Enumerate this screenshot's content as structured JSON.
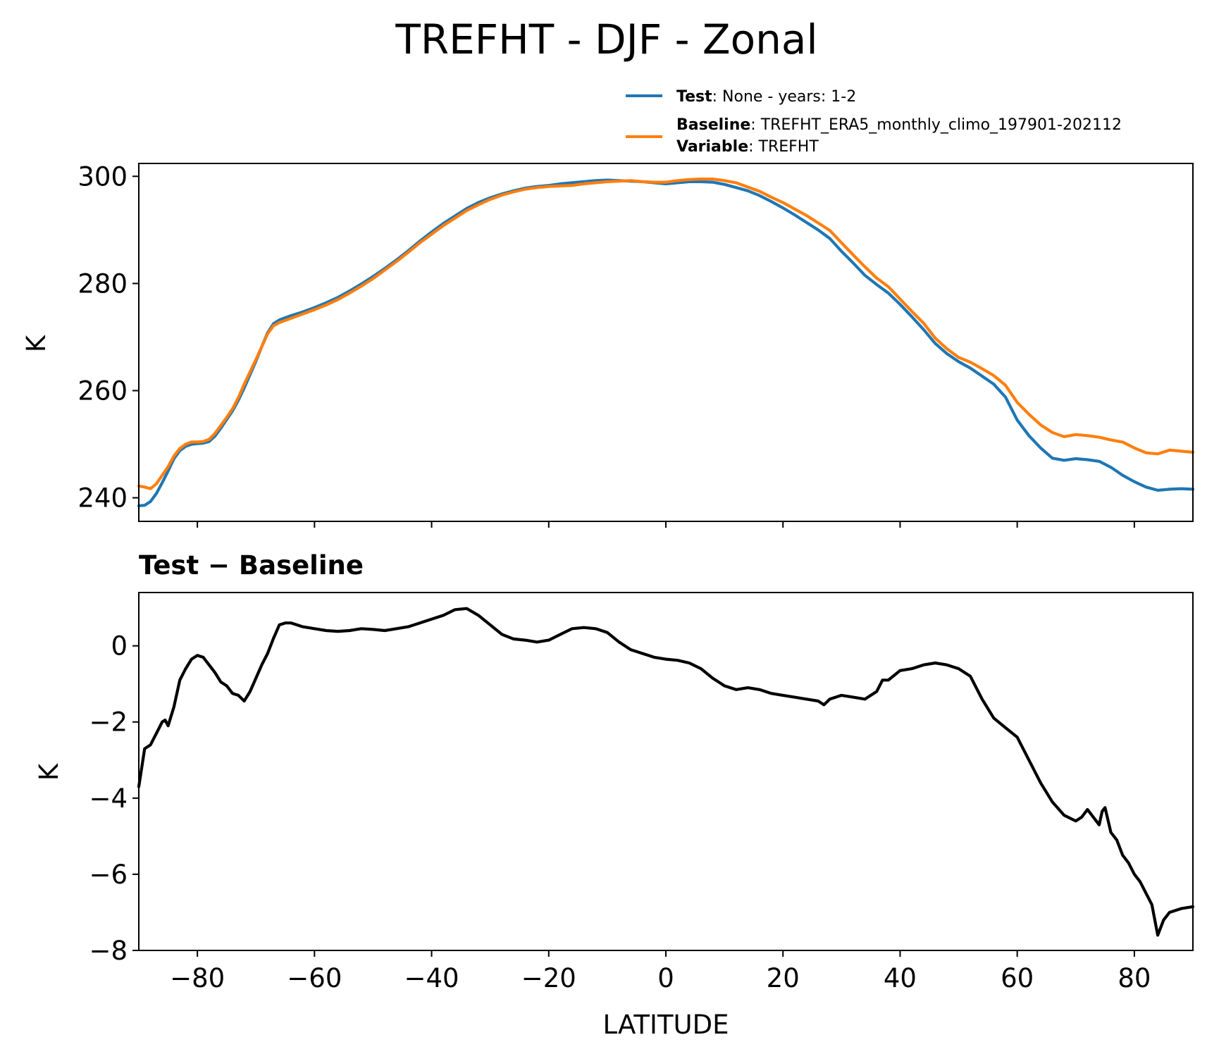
{
  "figure": {
    "title": "TREFHT - DJF - Zonal",
    "bottom_title": "Test − Baseline",
    "xlabel": "LATITUDE",
    "top_ylabel": "K",
    "bottom_ylabel": "K"
  },
  "legend": {
    "test_key": "Test",
    "test_desc": ": None - years: 1-2",
    "baseline_key": "Baseline",
    "baseline_desc": ": TREFHT_ERA5_monthly_climo_197901-202112",
    "variable_key": "Variable",
    "variable_desc": ": TREFHT"
  },
  "colors": {
    "test": "#1f77b4",
    "baseline": "#ff7f0e",
    "diff": "#000000"
  },
  "chart_data": [
    {
      "type": "line",
      "title": "TREFHT - DJF - Zonal",
      "xlabel": "",
      "ylabel": "K",
      "xlim": [
        -90,
        90
      ],
      "ylim": [
        235.6,
        302.4
      ],
      "xticks": [
        -80,
        -60,
        -40,
        -20,
        0,
        20,
        40,
        60,
        80
      ],
      "yticks": [
        240,
        260,
        280,
        300
      ],
      "legend_position": "above-right",
      "grid": false,
      "series": [
        {
          "name": "Test",
          "x": [
            -90,
            -89,
            -88,
            -87,
            -86,
            -85,
            -84,
            -83,
            -82,
            -81,
            -80,
            -79,
            -78,
            -77,
            -76,
            -75,
            -74,
            -73,
            -72,
            -71,
            -70,
            -69,
            -68,
            -67,
            -66,
            -65,
            -64,
            -62,
            -60,
            -58,
            -56,
            -54,
            -52,
            -50,
            -48,
            -46,
            -44,
            -42,
            -40,
            -38,
            -36,
            -34,
            -32,
            -30,
            -28,
            -26,
            -24,
            -22,
            -20,
            -18,
            -16,
            -14,
            -12,
            -10,
            -8,
            -6,
            -4,
            -2,
            0,
            2,
            4,
            6,
            8,
            10,
            12,
            14,
            16,
            18,
            20,
            22,
            24,
            26,
            28,
            30,
            32,
            34,
            36,
            38,
            40,
            42,
            44,
            46,
            48,
            50,
            52,
            54,
            56,
            58,
            60,
            62,
            64,
            66,
            68,
            70,
            72,
            74,
            76,
            78,
            80,
            82,
            84,
            86,
            88,
            90
          ],
          "values": [
            238.5,
            238.6,
            239.3,
            240.8,
            242.8,
            245.0,
            247.3,
            248.8,
            249.6,
            250.0,
            250.1,
            250.2,
            250.5,
            251.5,
            253.0,
            254.6,
            256.2,
            258.2,
            260.5,
            263.0,
            265.5,
            268.2,
            270.8,
            272.5,
            273.2,
            273.6,
            274.0,
            274.7,
            275.5,
            276.4,
            277.4,
            278.6,
            279.9,
            281.3,
            282.8,
            284.4,
            286.1,
            287.9,
            289.6,
            291.2,
            292.6,
            294.0,
            295.1,
            296.0,
            296.7,
            297.3,
            297.8,
            298.1,
            298.3,
            298.6,
            298.8,
            299.0,
            299.2,
            299.3,
            299.2,
            299.1,
            299.0,
            298.8,
            298.6,
            298.8,
            299.0,
            299.0,
            298.9,
            298.5,
            297.9,
            297.3,
            296.4,
            295.3,
            294.1,
            292.8,
            291.4,
            290.0,
            288.4,
            286.0,
            283.8,
            281.5,
            279.8,
            278.2,
            276.1,
            273.8,
            271.4,
            268.8,
            266.9,
            265.4,
            264.2,
            262.7,
            261.2,
            258.8,
            254.5,
            251.6,
            249.3,
            247.4,
            247.0,
            247.3,
            247.1,
            246.8,
            245.7,
            244.2,
            243.0,
            242.0,
            241.4,
            241.6,
            241.7,
            241.6
          ]
        },
        {
          "name": "Baseline",
          "x": [
            -90,
            -89,
            -88,
            -87,
            -86,
            -85,
            -84,
            -83,
            -82,
            -81,
            -80,
            -79,
            -78,
            -77,
            -76,
            -75,
            -74,
            -73,
            -72,
            -71,
            -70,
            -69,
            -68,
            -67,
            -66,
            -65,
            -64,
            -62,
            -60,
            -58,
            -56,
            -54,
            -52,
            -50,
            -48,
            -46,
            -44,
            -42,
            -40,
            -38,
            -36,
            -34,
            -32,
            -30,
            -28,
            -26,
            -24,
            -22,
            -20,
            -18,
            -16,
            -14,
            -12,
            -10,
            -8,
            -6,
            -4,
            -2,
            0,
            2,
            4,
            6,
            8,
            10,
            12,
            14,
            16,
            18,
            20,
            22,
            24,
            26,
            28,
            30,
            32,
            34,
            36,
            38,
            40,
            42,
            44,
            46,
            48,
            50,
            52,
            54,
            56,
            58,
            60,
            62,
            64,
            66,
            68,
            70,
            72,
            74,
            76,
            78,
            80,
            82,
            84,
            86,
            88,
            90
          ],
          "values": [
            242.2,
            242.0,
            241.7,
            242.6,
            244.2,
            245.8,
            247.8,
            249.2,
            250.0,
            250.4,
            250.4,
            250.5,
            250.9,
            252.0,
            253.5,
            255.0,
            256.6,
            258.7,
            261.2,
            263.5,
            265.8,
            268.2,
            270.6,
            272.1,
            272.7,
            273.1,
            273.5,
            274.3,
            275.1,
            276.0,
            277.0,
            278.2,
            279.5,
            280.9,
            282.5,
            284.1,
            285.8,
            287.6,
            289.2,
            290.8,
            292.2,
            293.6,
            294.7,
            295.7,
            296.5,
            297.1,
            297.6,
            297.9,
            298.1,
            298.2,
            298.3,
            298.6,
            298.8,
            299.0,
            299.1,
            299.2,
            299.0,
            298.9,
            298.9,
            299.2,
            299.4,
            299.5,
            299.5,
            299.2,
            298.8,
            298.0,
            297.2,
            296.1,
            295.1,
            293.9,
            292.7,
            291.3,
            289.9,
            287.6,
            285.3,
            283.1,
            281.0,
            279.4,
            277.1,
            274.8,
            272.6,
            269.8,
            267.8,
            266.2,
            265.3,
            264.1,
            262.8,
            261.0,
            257.8,
            255.6,
            253.6,
            252.2,
            251.4,
            251.8,
            251.6,
            251.3,
            250.8,
            250.4,
            249.3,
            248.4,
            248.2,
            248.9,
            248.7,
            248.5
          ]
        }
      ]
    },
    {
      "type": "line",
      "title": "Test − Baseline",
      "xlabel": "LATITUDE",
      "ylabel": "K",
      "xlim": [
        -90,
        90
      ],
      "ylim": [
        -8.0,
        1.4
      ],
      "xticks": [
        -80,
        -60,
        -40,
        -20,
        0,
        20,
        40,
        60,
        80
      ],
      "yticks": [
        -8,
        -6,
        -4,
        -2,
        0
      ],
      "grid": false,
      "series": [
        {
          "name": "Test − Baseline",
          "x": [
            -90,
            -89,
            -88,
            -87,
            -86,
            -85.5,
            -85,
            -84,
            -83,
            -82,
            -81,
            -80,
            -79,
            -78,
            -77,
            -76,
            -75,
            -74,
            -73,
            -72,
            -71,
            -70,
            -69,
            -68,
            -67,
            -66,
            -65,
            -64,
            -62,
            -60,
            -58,
            -56,
            -54,
            -52,
            -50,
            -48,
            -46,
            -44,
            -42,
            -40,
            -38,
            -36,
            -34,
            -32,
            -30,
            -28,
            -26,
            -24,
            -22,
            -20,
            -18,
            -16,
            -14,
            -12,
            -10,
            -8,
            -6,
            -4,
            -2,
            0,
            2,
            4,
            6,
            8,
            10,
            12,
            14,
            16,
            18,
            20,
            22,
            24,
            26,
            27,
            28,
            30,
            32,
            34,
            36,
            37,
            38,
            40,
            42,
            44,
            46,
            48,
            50,
            52,
            54,
            56,
            58,
            60,
            62,
            64,
            66,
            68,
            70,
            71,
            72,
            73,
            74,
            74.5,
            75,
            76,
            77,
            78,
            79,
            80,
            81,
            82,
            83,
            84,
            85,
            86,
            88,
            90
          ],
          "values": [
            -3.7,
            -2.7,
            -2.6,
            -2.3,
            -2.0,
            -1.95,
            -2.1,
            -1.6,
            -0.9,
            -0.6,
            -0.35,
            -0.25,
            -0.3,
            -0.5,
            -0.7,
            -0.95,
            -1.05,
            -1.25,
            -1.3,
            -1.45,
            -1.2,
            -0.85,
            -0.5,
            -0.2,
            0.2,
            0.55,
            0.6,
            0.6,
            0.5,
            0.45,
            0.4,
            0.38,
            0.4,
            0.45,
            0.43,
            0.4,
            0.45,
            0.5,
            0.6,
            0.7,
            0.8,
            0.95,
            0.98,
            0.8,
            0.55,
            0.3,
            0.18,
            0.15,
            0.1,
            0.15,
            0.3,
            0.45,
            0.48,
            0.45,
            0.35,
            0.1,
            -0.1,
            -0.2,
            -0.3,
            -0.35,
            -0.38,
            -0.45,
            -0.6,
            -0.85,
            -1.05,
            -1.15,
            -1.1,
            -1.15,
            -1.25,
            -1.3,
            -1.35,
            -1.4,
            -1.45,
            -1.55,
            -1.4,
            -1.3,
            -1.35,
            -1.4,
            -1.2,
            -0.9,
            -0.9,
            -0.65,
            -0.6,
            -0.5,
            -0.45,
            -0.5,
            -0.6,
            -0.8,
            -1.4,
            -1.9,
            -2.15,
            -2.4,
            -3.0,
            -3.6,
            -4.1,
            -4.45,
            -4.6,
            -4.5,
            -4.3,
            -4.5,
            -4.7,
            -4.35,
            -4.25,
            -4.9,
            -5.1,
            -5.5,
            -5.7,
            -6.0,
            -6.2,
            -6.5,
            -6.8,
            -7.6,
            -7.2,
            -7.0,
            -6.9,
            -6.85
          ]
        }
      ]
    }
  ]
}
